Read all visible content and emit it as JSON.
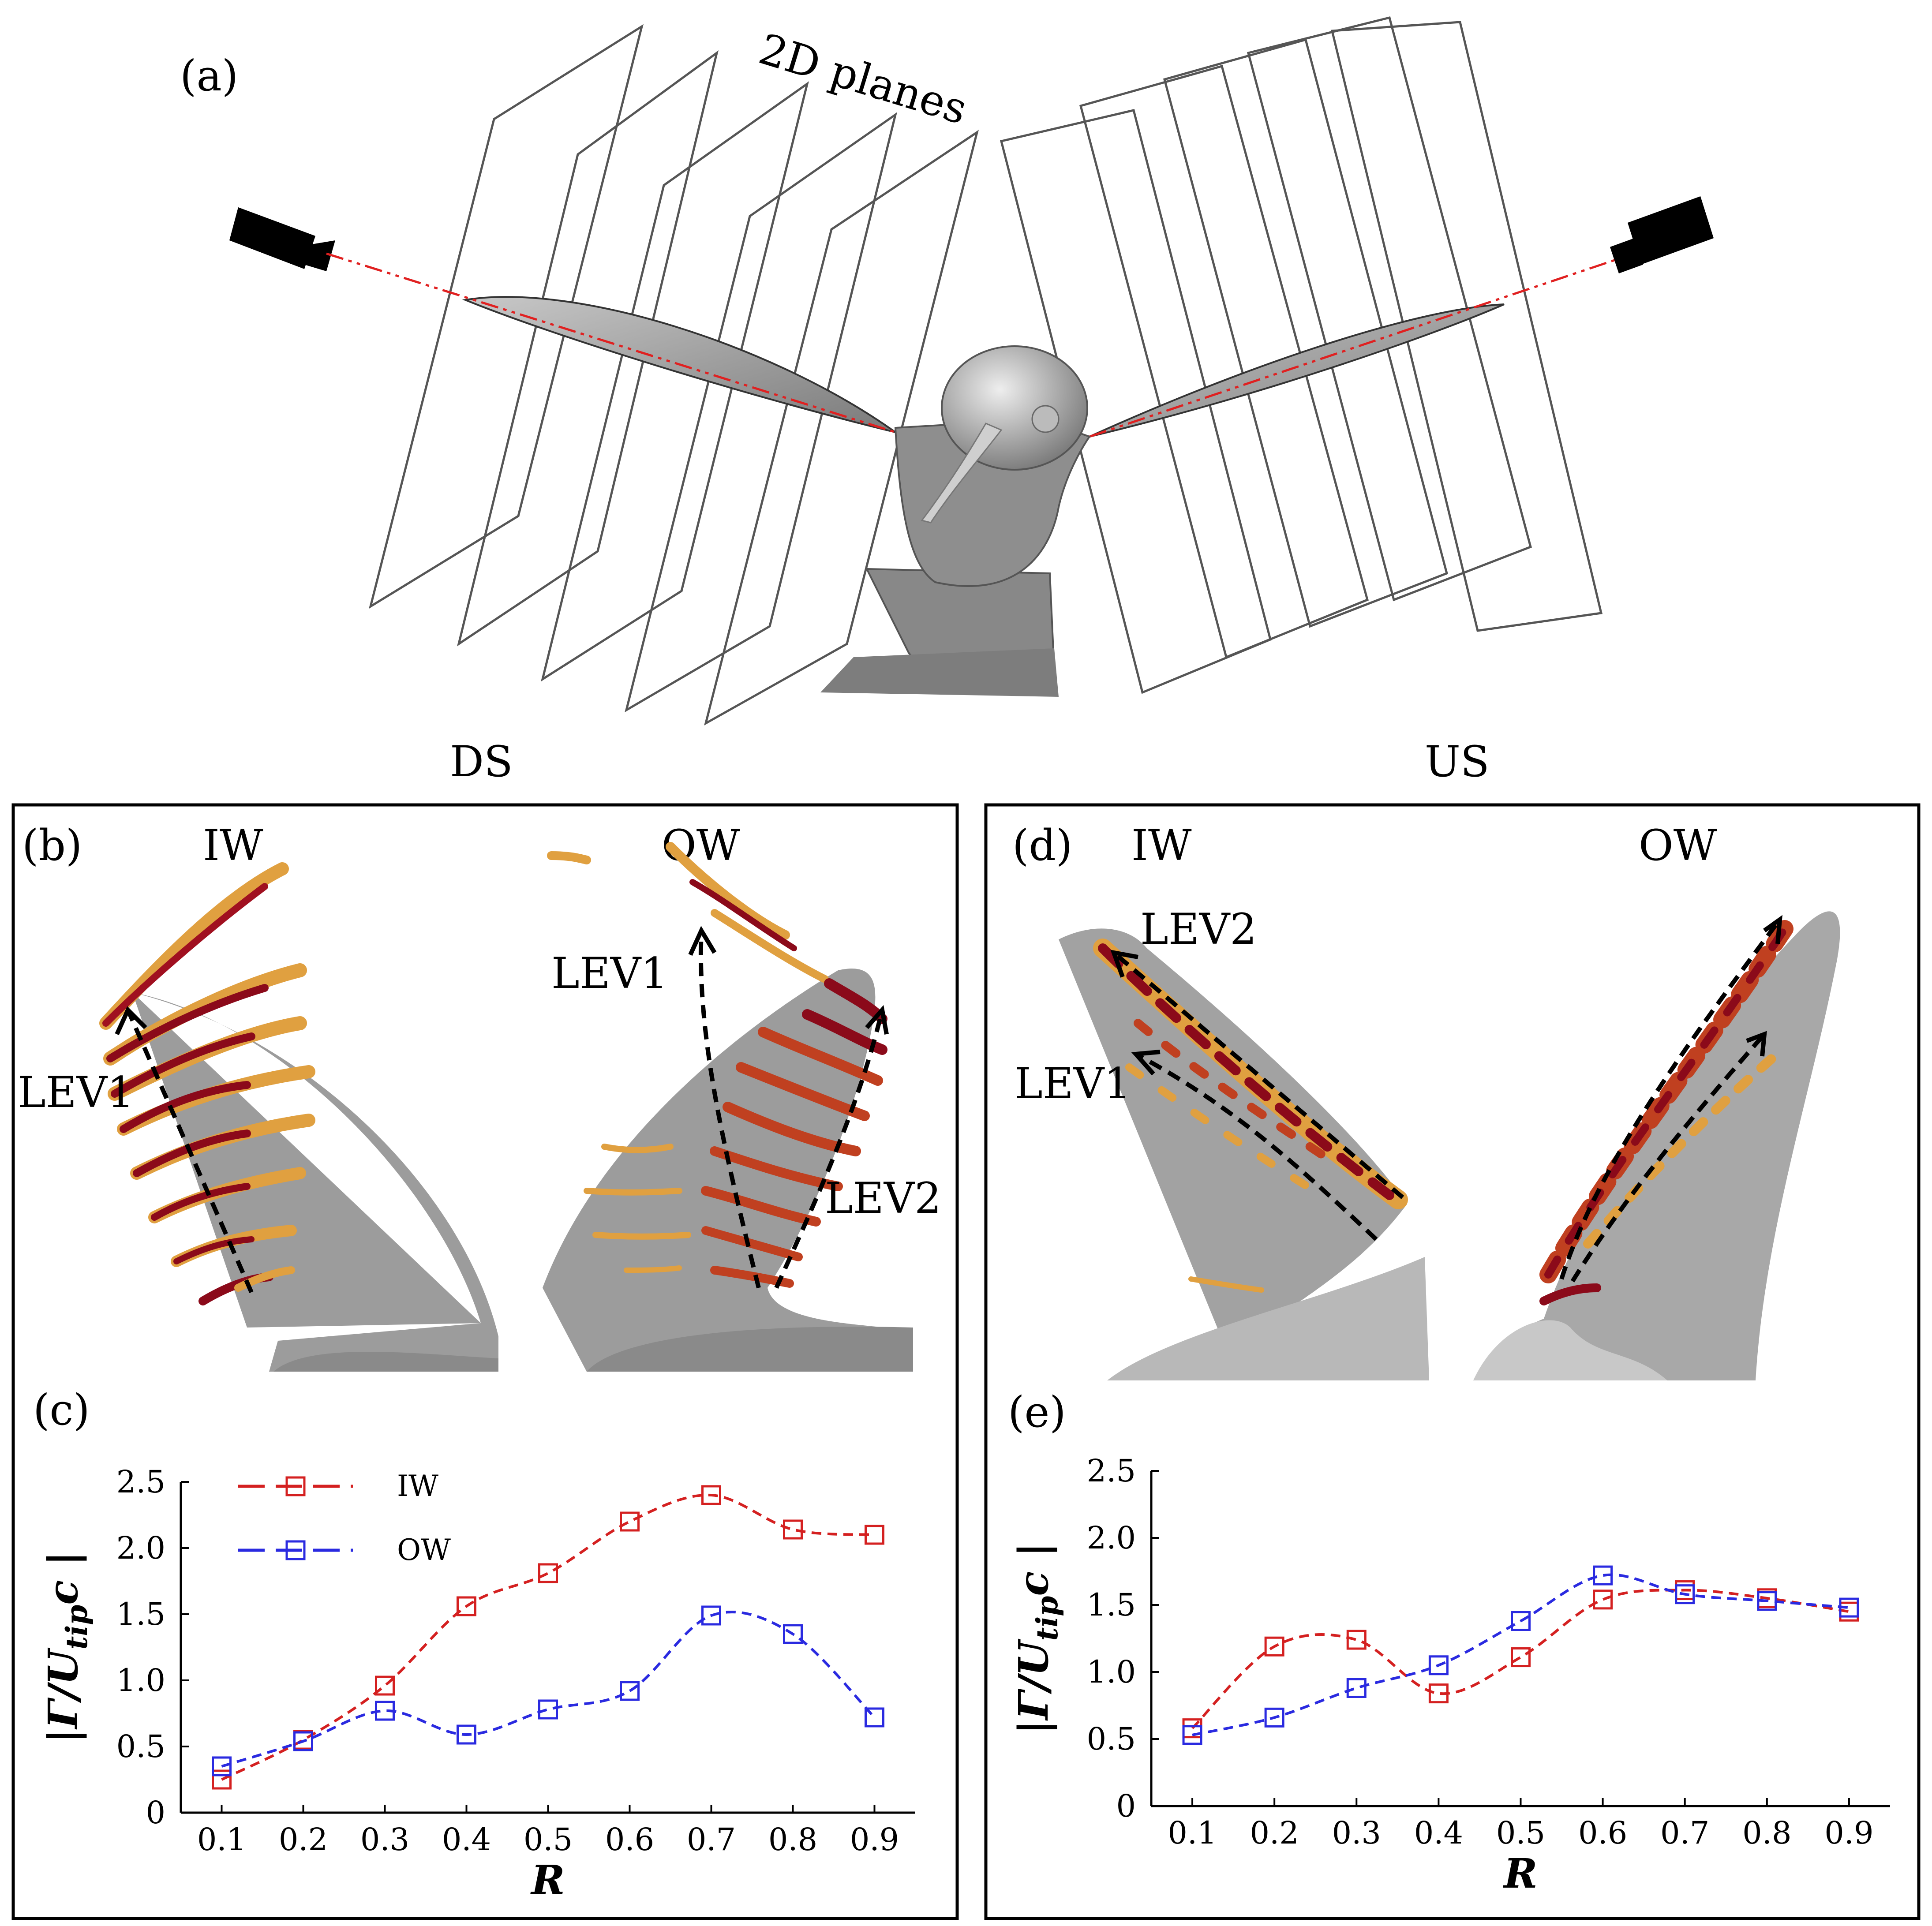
{
  "labels": {
    "panel_a": "(a)",
    "planes": "2D planes",
    "ds": "DS",
    "us": "US",
    "panel_b": "(b)",
    "panel_c": "(c)",
    "panel_d": "(d)",
    "panel_e": "(e)",
    "iw": "IW",
    "ow": "OW",
    "lev1": "LEV1",
    "lev2": "LEV2"
  },
  "colors": {
    "iw": "#d42020",
    "ow": "#2a2ae0",
    "vortex_dark": "#8b0a1a",
    "vortex_light": "#e0a040",
    "wing": "#a0a0a0",
    "laser": "#e02020"
  },
  "chart_data": [
    {
      "id": "c",
      "type": "line",
      "x": [
        0.1,
        0.2,
        0.3,
        0.4,
        0.5,
        0.6,
        0.7,
        0.8,
        0.9
      ],
      "xlabel": "R",
      "ylabel": "|Γ/U_tip c |",
      "ylabel_main": "|Γ/U",
      "ylabel_sub": "tip",
      "ylabel_tail": "c |",
      "xlim": [
        0.05,
        0.95
      ],
      "ylim": [
        0,
        2.5
      ],
      "xticks": [
        "0.1",
        "0.2",
        "0.3",
        "0.4",
        "0.5",
        "0.6",
        "0.7",
        "0.8",
        "0.9"
      ],
      "yticks": [
        "0",
        "0.5",
        "1.0",
        "1.5",
        "2.0",
        "2.5"
      ],
      "legend": [
        "IW",
        "OW"
      ],
      "series": [
        {
          "name": "IW",
          "values": [
            0.25,
            0.55,
            0.96,
            1.56,
            1.81,
            2.2,
            2.4,
            2.14,
            2.1
          ]
        },
        {
          "name": "OW",
          "values": [
            0.35,
            0.54,
            0.77,
            0.59,
            0.78,
            0.92,
            1.49,
            1.35,
            0.72
          ]
        }
      ]
    },
    {
      "id": "e",
      "type": "line",
      "x": [
        0.1,
        0.2,
        0.3,
        0.4,
        0.5,
        0.6,
        0.7,
        0.8,
        0.9
      ],
      "xlabel": "R",
      "ylabel": "|Γ/U_tip c |",
      "ylabel_main": "|Γ/U",
      "ylabel_sub": "tip",
      "ylabel_tail": "c |",
      "xlim": [
        0.05,
        0.95
      ],
      "ylim": [
        0,
        2.5
      ],
      "xticks": [
        "0.1",
        "0.2",
        "0.3",
        "0.4",
        "0.5",
        "0.6",
        "0.7",
        "0.8",
        "0.9"
      ],
      "yticks": [
        "0",
        "0.5",
        "1.0",
        "1.5",
        "2.0",
        "2.5"
      ],
      "legend": [],
      "series": [
        {
          "name": "IW",
          "values": [
            0.58,
            1.19,
            1.24,
            0.84,
            1.11,
            1.54,
            1.61,
            1.55,
            1.45
          ]
        },
        {
          "name": "OW",
          "values": [
            0.53,
            0.66,
            0.88,
            1.05,
            1.38,
            1.72,
            1.58,
            1.53,
            1.48
          ]
        }
      ]
    }
  ]
}
